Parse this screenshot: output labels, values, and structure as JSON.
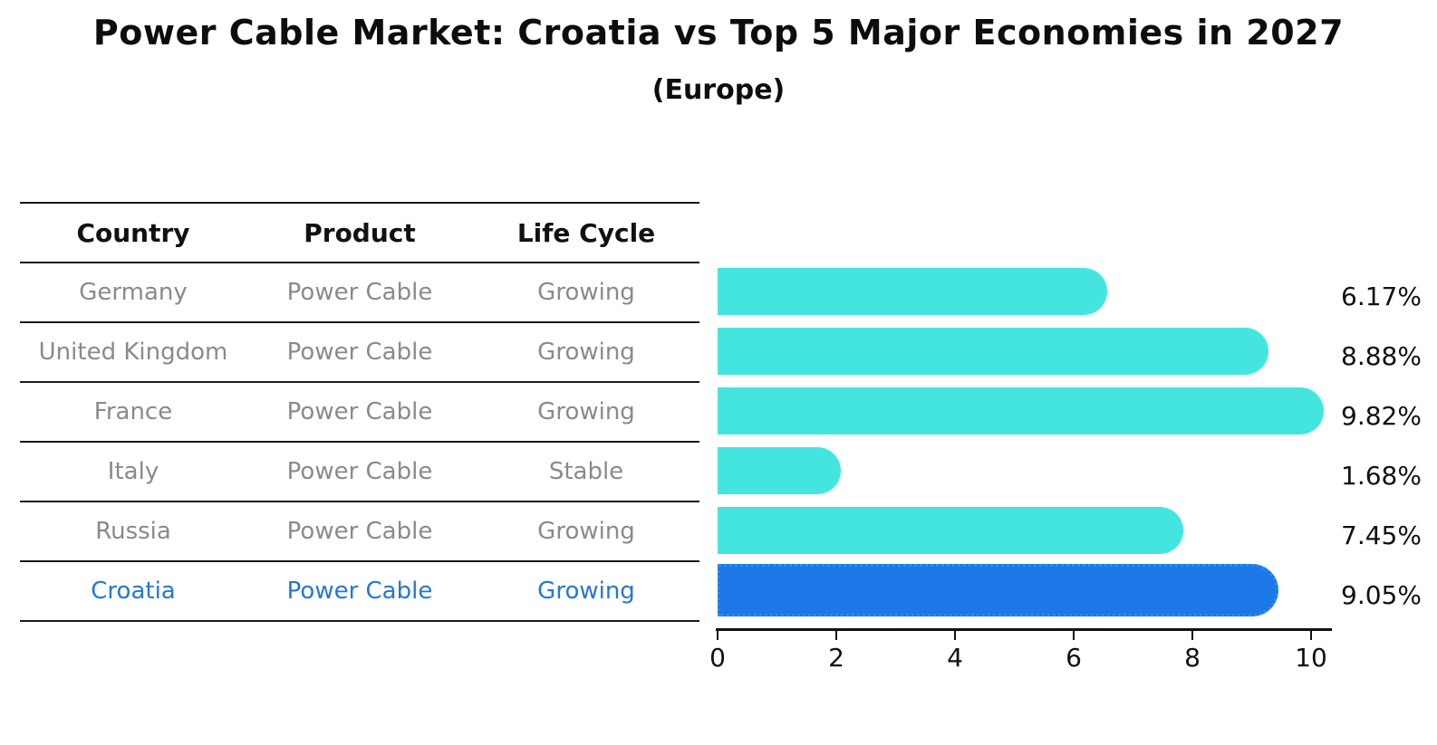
{
  "title": "Power Cable Market: Croatia vs Top 5 Major Economies in 2027",
  "subtitle": "(Europe)",
  "table": {
    "headers": [
      "Country",
      "Product",
      "Life Cycle"
    ],
    "rows": [
      {
        "country": "Germany",
        "product": "Power Cable",
        "life_cycle": "Growing",
        "highlighted": false
      },
      {
        "country": "United Kingdom",
        "product": "Power Cable",
        "life_cycle": "Growing",
        "highlighted": false
      },
      {
        "country": "France",
        "product": "Power Cable",
        "life_cycle": "Growing",
        "highlighted": false
      },
      {
        "country": "Italy",
        "product": "Power Cable",
        "life_cycle": "Stable",
        "highlighted": false
      },
      {
        "country": "Russia",
        "product": "Power Cable",
        "life_cycle": "Growing",
        "highlighted": false
      },
      {
        "country": "Croatia",
        "product": "Power Cable",
        "life_cycle": "Growing",
        "highlighted": true
      }
    ]
  },
  "chart_data": {
    "type": "bar",
    "orientation": "horizontal",
    "title": "Power Cable Market: Croatia vs Top 5 Major Economies in 2027 (Europe)",
    "categories": [
      "Germany",
      "United Kingdom",
      "France",
      "Italy",
      "Russia",
      "Croatia"
    ],
    "values": [
      6.17,
      8.88,
      9.82,
      1.68,
      7.45,
      9.05
    ],
    "value_labels": [
      "6.17%",
      "8.88%",
      "9.82%",
      "1.68%",
      "7.45%",
      "9.05%"
    ],
    "x_ticks": [
      "0",
      "2",
      "4",
      "6",
      "8",
      "10"
    ],
    "x_tick_values": [
      0,
      2,
      4,
      6,
      8,
      10
    ],
    "xlim": [
      0,
      10
    ],
    "grid": false,
    "legend": false,
    "bar_color": "#44E5DF",
    "highlight_color": "#1B78E6",
    "highlight_index": 5,
    "highlight_edge_style": "dotted"
  },
  "colors": {
    "header_text": "#111111",
    "row_text": "#8a8a8a",
    "highlight_text": "#2577D6",
    "axis": "#111111",
    "value_label_text": "#111111"
  }
}
